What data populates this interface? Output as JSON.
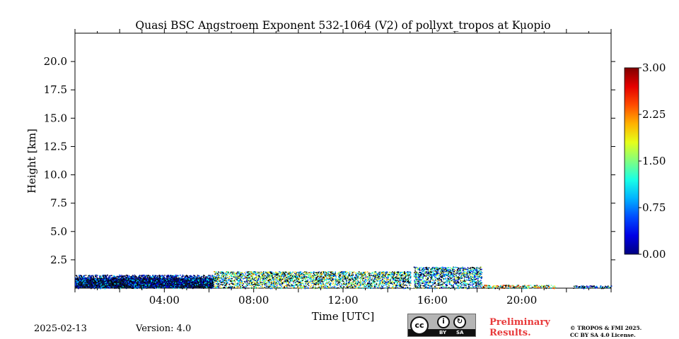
{
  "chart_data": {
    "type": "heatmap",
    "title": "Quasi BSC Angstroem Exponent 532-1064 (V2) of pollyxt_tropos at Kuopio",
    "xlabel": "Time [UTC]",
    "ylabel": "Height [km]",
    "xlim": [
      0,
      24
    ],
    "ylim": [
      0,
      22.5
    ],
    "x_ticks": [
      4,
      8,
      12,
      16,
      20
    ],
    "x_tick_labels": [
      "04:00",
      "08:00",
      "12:00",
      "16:00",
      "20:00"
    ],
    "y_ticks": [
      2.5,
      5.0,
      7.5,
      10.0,
      12.5,
      15.0,
      17.5,
      20.0
    ],
    "y_tick_labels": [
      "2.5",
      "5.0",
      "7.5",
      "10.0",
      "12.5",
      "15.0",
      "17.5",
      "20.0"
    ],
    "colorbar": {
      "min": 0.0,
      "max": 3.0,
      "ticks": [
        0.0,
        0.75,
        1.5,
        2.25,
        3.0
      ],
      "tick_labels": [
        "0.00",
        "0.75",
        "1.50",
        "2.25",
        "3.00"
      ],
      "colormap": "jet"
    },
    "gap_hours": [
      15.05,
      15.15
    ],
    "segments": [
      {
        "t_start": 0.0,
        "t_end": 6.2,
        "height_km": 1.2,
        "dominant_value": 0.3,
        "note": "dense dark/blue layer"
      },
      {
        "t_start": 6.2,
        "t_end": 15.05,
        "height_km": 1.5,
        "dominant_value": 1.3,
        "note": "scattered mixed signal"
      },
      {
        "t_start": 15.15,
        "t_end": 18.2,
        "height_km": 1.9,
        "dominant_value": 1.0,
        "note": "mixed signal"
      },
      {
        "t_start": 18.2,
        "t_end": 21.5,
        "height_km": 0.3,
        "dominant_value": 1.8,
        "note": "sparse near-surface"
      },
      {
        "t_start": 22.3,
        "t_end": 24.0,
        "height_km": 0.25,
        "dominant_value": 0.6,
        "note": "sparse near-surface"
      }
    ]
  },
  "footer": {
    "date": "2025-02-13",
    "version": "Version: 4.0",
    "preliminary_line1": "Preliminary",
    "preliminary_line2": "Results.",
    "copyright_line1": "© TROPOS & FMI 2025.",
    "copyright_line2": "CC BY SA 4.0 License.",
    "license_badge": {
      "main": "cc",
      "by": "BY",
      "sa": "SA",
      "by_icon": "i",
      "sa_icon": "↻"
    }
  }
}
